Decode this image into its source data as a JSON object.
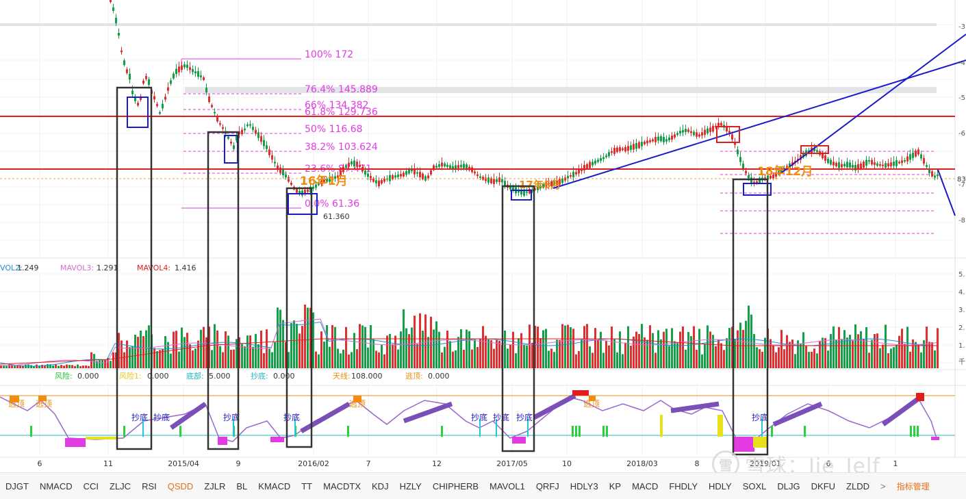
{
  "chart_data": {
    "type": "candlestick",
    "x_ticks": [
      "6",
      "11",
      "2015/04",
      "9",
      "2016/02",
      "7",
      "12",
      "2017/05",
      "10",
      "2018/03",
      "8",
      "2019/01",
      "6",
      "1"
    ],
    "y_ticks": [
      "-3",
      "-4",
      "-5",
      "-6",
      "-7",
      "-8",
      "5.",
      "4.",
      "3.",
      "2.",
      "1.",
      "千"
    ],
    "price_label": "83",
    "fib_levels": [
      {
        "label": "100% 172"
      },
      {
        "label": "76.4% 145.889"
      },
      {
        "label": "66% 134.382"
      },
      {
        "label": "61.8% 129.736"
      },
      {
        "label": "50% 116.68"
      },
      {
        "label": "38.2% 103.624"
      },
      {
        "label": "23.6% 87.471"
      },
      {
        "label": "0.0% 61.36"
      }
    ],
    "low_label": "61.360",
    "annotations": [
      {
        "text": "16年1月"
      },
      {
        "text": "17年6月"
      },
      {
        "text": "18年12月"
      }
    ],
    "volume_legend": [
      {
        "name": "VOL2:",
        "value": "1.249",
        "color": "#1a8fd6"
      },
      {
        "name": "MAVOL3:",
        "value": "1.291",
        "color": "#d36bd3"
      },
      {
        "name": "MAVOL4:",
        "value": "1.416",
        "color": "#e02020"
      }
    ],
    "indicator_legend": [
      {
        "name": "风险:",
        "value": "0.000",
        "color": "#2bbf3a"
      },
      {
        "name": "风险1:",
        "value": "0.000",
        "color": "#e8c51a"
      },
      {
        "name": "底部:",
        "value": "5.000",
        "color": "#23b7c6"
      },
      {
        "name": "抄底:",
        "value": "0.000",
        "color": "#23b7c6"
      },
      {
        "name": "天线:",
        "value": "108.000",
        "color": "#f08c12"
      },
      {
        "name": "逃顶:",
        "value": "0.000",
        "color": "#f08c12"
      }
    ],
    "signals": {
      "chaodi": "抄底",
      "taoding": "逃顶"
    },
    "colors": {
      "up": "#e02d2d",
      "down": "#11a047",
      "fib": "#e23be2",
      "trend": "#1a1acc",
      "box": "#333333"
    }
  },
  "tabs": [
    "DJGT",
    "NMACD",
    "CCI",
    "ZLJC",
    "RSI",
    "QSDD",
    "ZJLR",
    "BL",
    "KMACD",
    "TT",
    "MACDTX",
    "KDJ",
    "HZLY",
    "CHIPHERB",
    "MAVOL1",
    "QRFJ",
    "HDLY3",
    "KP",
    "MACD",
    "FHDLY",
    "HDLY",
    "SOXL",
    "DLJG",
    "DKFU",
    "ZLDD"
  ],
  "active_tab": "QSDD",
  "more_label": ">",
  "manage_label": "指标管理",
  "watermark": {
    "logo": "雪",
    "text": "雪球：Jie_Jelf"
  }
}
